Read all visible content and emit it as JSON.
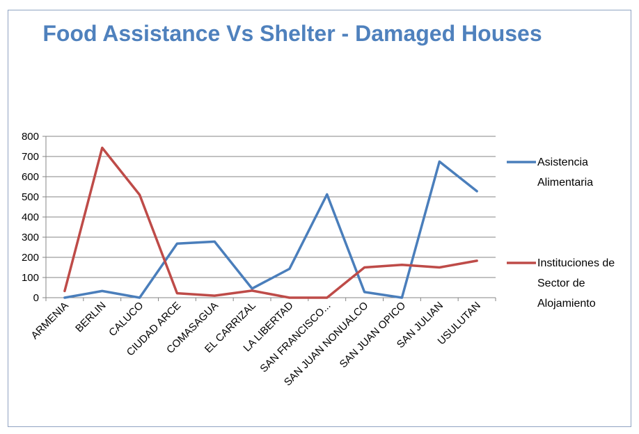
{
  "chart_data": {
    "type": "line",
    "title": "Food Assistance Vs Shelter - Damaged Houses",
    "categories": [
      "ARMENIA",
      "BERLIN",
      "CALUCO",
      "CIUDAD ARCE",
      "COMASAGUA",
      "EL CARRIZAL",
      "LA LIBERTAD",
      "SAN FRANCISCO...",
      "SAN JUAN NONUALCO",
      "SAN JUAN OPICO",
      "SAN JULIAN",
      "USULUTAN"
    ],
    "series": [
      {
        "name": "Asistencia Alimentaria",
        "values": [
          0,
          33,
          0,
          268,
          278,
          45,
          143,
          512,
          28,
          0,
          675,
          528
        ],
        "color": "#4a7ebb"
      },
      {
        "name": "Instituciones de Sector de Alojamiento",
        "values": [
          33,
          743,
          510,
          22,
          10,
          35,
          0,
          0,
          150,
          163,
          150,
          183
        ],
        "color": "#be4b48"
      }
    ],
    "ylim": [
      0,
      800
    ],
    "yticks": [
      0,
      100,
      200,
      300,
      400,
      500,
      600,
      700,
      800
    ],
    "grid": true,
    "legend_position": "right",
    "legend_lines": [
      [
        "Asistencia",
        "Alimentaria"
      ],
      [
        "Instituciones de",
        "Sector de",
        "Alojamiento"
      ]
    ]
  }
}
